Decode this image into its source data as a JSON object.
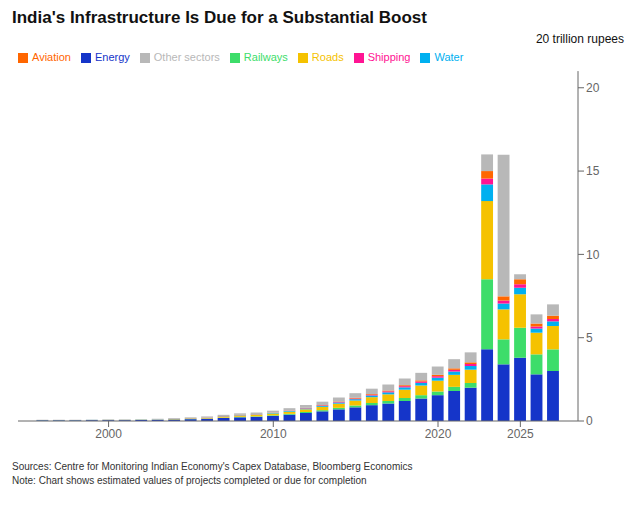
{
  "chart_data": {
    "type": "bar",
    "title": "India's Infrastructure Is Due for a Substantial Boost",
    "ylabel": "20 trillion rupees",
    "annotations": [
      "Sources: Centre for Monitoring Indian Economy's Capex Database, Bloomberg Economics",
      "Note: Chart shows estimated values of projects completed or due for completion"
    ],
    "stacked": true,
    "grid": false,
    "legend": "top",
    "x": [
      1996,
      1997,
      1998,
      1999,
      2000,
      2001,
      2002,
      2003,
      2004,
      2005,
      2006,
      2007,
      2008,
      2009,
      2010,
      2011,
      2012,
      2013,
      2014,
      2015,
      2016,
      2017,
      2018,
      2019,
      2020,
      2021,
      2022,
      2023,
      2024,
      2025,
      2026,
      2027
    ],
    "xlim": [
      1994.5,
      2028.5
    ],
    "xticks": [
      2000,
      2010,
      2020,
      2025
    ],
    "ylim": [
      0,
      21
    ],
    "yticks": [
      0,
      5,
      10,
      15,
      20
    ],
    "series": [
      {
        "name": "Energy",
        "color": "#1535c9",
        "values": [
          0.04,
          0.04,
          0.04,
          0.05,
          0.05,
          0.05,
          0.06,
          0.07,
          0.09,
          0.11,
          0.14,
          0.18,
          0.22,
          0.25,
          0.3,
          0.38,
          0.48,
          0.58,
          0.7,
          0.82,
          0.95,
          1.05,
          1.2,
          1.35,
          1.55,
          1.8,
          2.0,
          4.3,
          3.4,
          3.8,
          2.8,
          3.0
        ]
      },
      {
        "name": "Railways",
        "color": "#3ddd6a",
        "values": [
          0.005,
          0.005,
          0.005,
          0.005,
          0.005,
          0.005,
          0.005,
          0.01,
          0.01,
          0.01,
          0.01,
          0.02,
          0.03,
          0.03,
          0.04,
          0.05,
          0.06,
          0.07,
          0.09,
          0.11,
          0.13,
          0.15,
          0.18,
          0.2,
          0.22,
          0.25,
          0.28,
          4.2,
          1.5,
          1.8,
          1.2,
          1.3
        ]
      },
      {
        "name": "Roads",
        "color": "#f5c200",
        "values": [
          0.005,
          0.005,
          0.005,
          0.005,
          0.01,
          0.01,
          0.01,
          0.01,
          0.02,
          0.03,
          0.04,
          0.06,
          0.08,
          0.09,
          0.11,
          0.13,
          0.16,
          0.2,
          0.25,
          0.3,
          0.35,
          0.4,
          0.5,
          0.58,
          0.65,
          0.72,
          0.8,
          4.7,
          1.8,
          2.0,
          1.3,
          1.4
        ]
      },
      {
        "name": "Water",
        "color": "#00b0f0",
        "values": [
          0.005,
          0.005,
          0.005,
          0.005,
          0.005,
          0.005,
          0.01,
          0.01,
          0.01,
          0.01,
          0.01,
          0.02,
          0.02,
          0.02,
          0.03,
          0.04,
          0.05,
          0.06,
          0.07,
          0.08,
          0.1,
          0.12,
          0.14,
          0.16,
          0.18,
          0.2,
          0.22,
          1.0,
          0.35,
          0.4,
          0.25,
          0.28
        ]
      },
      {
        "name": "Shipping",
        "color": "#ff1493",
        "values": [
          0.0,
          0.0,
          0.0,
          0.0,
          0.0,
          0.0,
          0.0,
          0.005,
          0.005,
          0.005,
          0.01,
          0.01,
          0.01,
          0.01,
          0.01,
          0.02,
          0.02,
          0.03,
          0.03,
          0.04,
          0.05,
          0.06,
          0.07,
          0.08,
          0.09,
          0.1,
          0.12,
          0.35,
          0.18,
          0.2,
          0.12,
          0.14
        ]
      },
      {
        "name": "Aviation",
        "color": "#ff6600",
        "values": [
          0.0,
          0.0,
          0.0,
          0.0,
          0.0,
          0.0,
          0.0,
          0.0,
          0.005,
          0.005,
          0.005,
          0.01,
          0.01,
          0.01,
          0.01,
          0.01,
          0.02,
          0.02,
          0.03,
          0.04,
          0.04,
          0.05,
          0.06,
          0.07,
          0.08,
          0.09,
          0.1,
          0.45,
          0.25,
          0.3,
          0.18,
          0.2
        ]
      },
      {
        "name": "Other sectors",
        "color": "#b8b8b8",
        "values": [
          0.02,
          0.02,
          0.02,
          0.02,
          0.03,
          0.03,
          0.03,
          0.03,
          0.04,
          0.05,
          0.06,
          0.07,
          0.09,
          0.1,
          0.12,
          0.14,
          0.17,
          0.2,
          0.24,
          0.28,
          0.32,
          0.36,
          0.4,
          0.45,
          0.5,
          0.55,
          0.6,
          1.0,
          8.5,
          0.3,
          0.55,
          0.68
        ]
      }
    ]
  }
}
